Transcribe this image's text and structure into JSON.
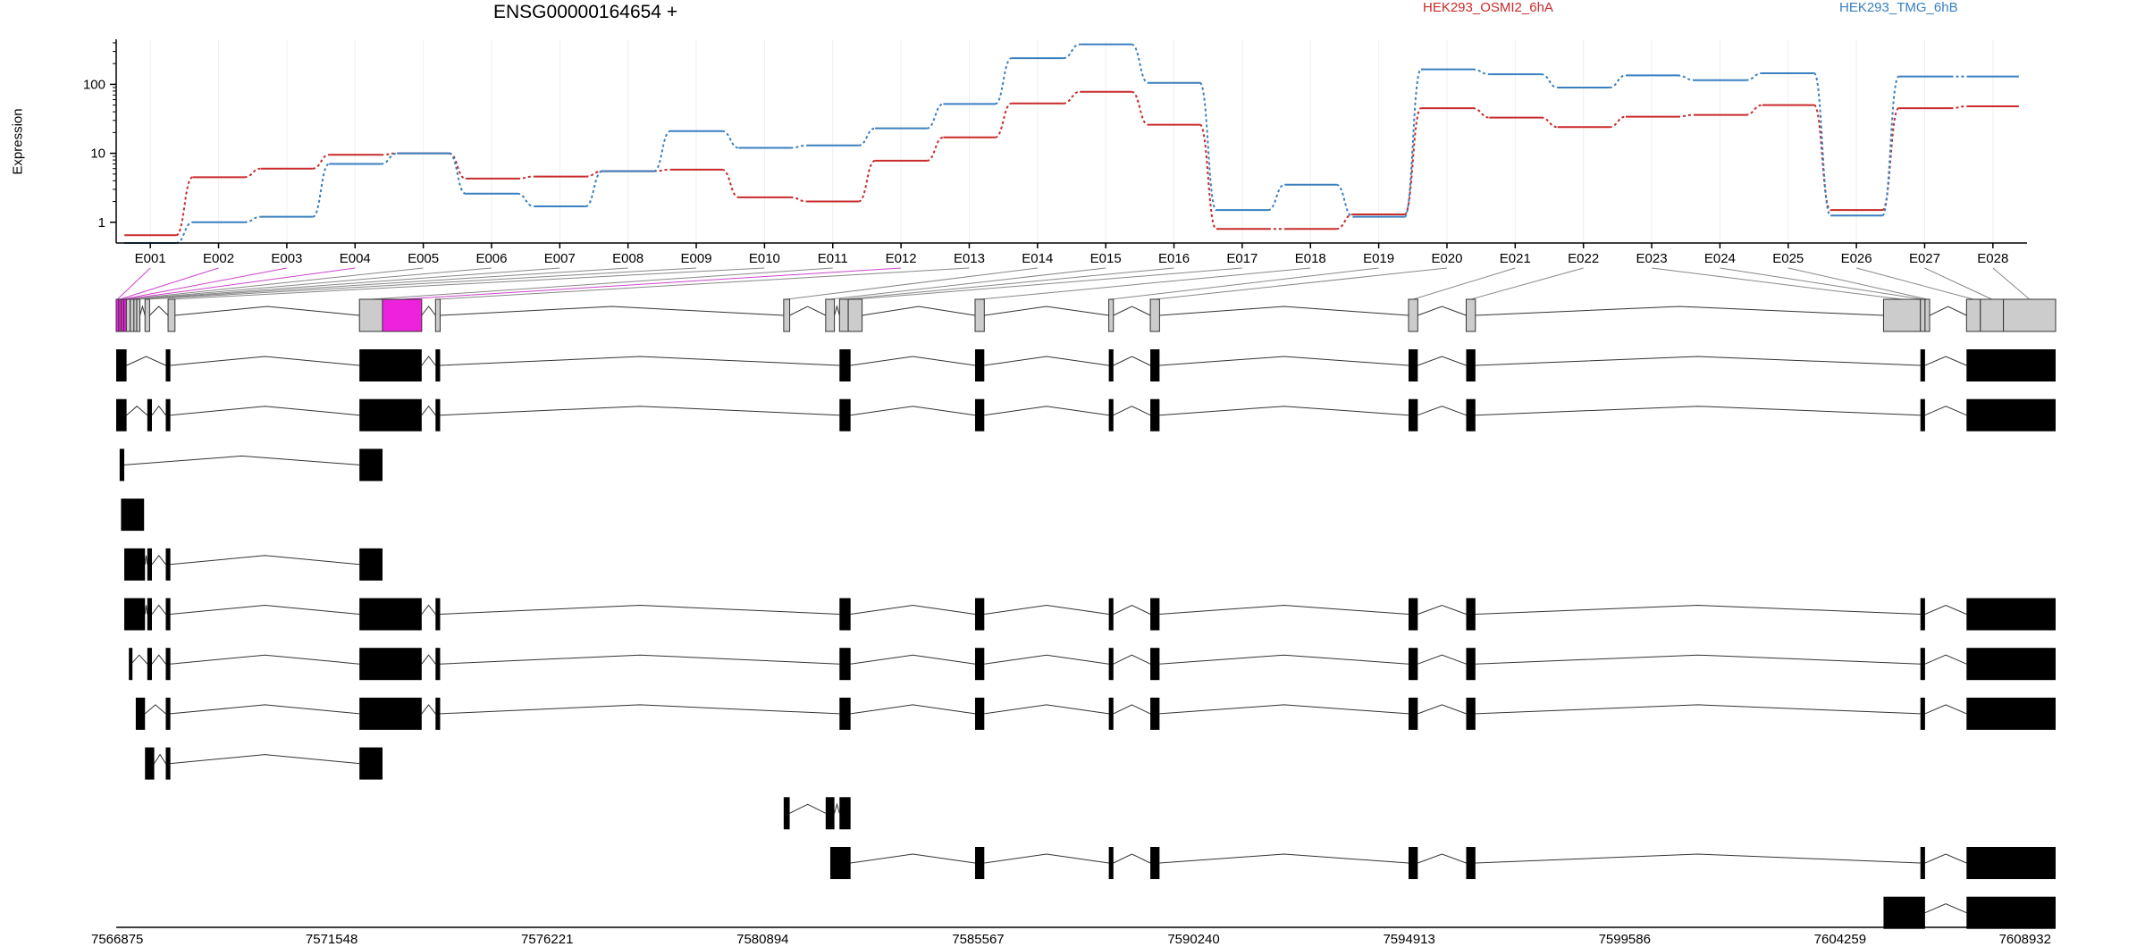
{
  "chart_data": {
    "type": "line",
    "title": "ENSG00000164654 +",
    "ylabel": "Expression",
    "yscale": "log",
    "ylim": [
      0.5,
      450
    ],
    "yticks": [
      1,
      10,
      100
    ],
    "ytick_labels": [
      "1",
      "10",
      "100"
    ],
    "categories": [
      "E001",
      "E002",
      "E003",
      "E004",
      "E005",
      "E006",
      "E007",
      "E008",
      "E009",
      "E010",
      "E011",
      "E012",
      "E013",
      "E014",
      "E015",
      "E016",
      "E017",
      "E018",
      "E019",
      "E020",
      "E021",
      "E022",
      "E023",
      "E024",
      "E025",
      "E026",
      "E027",
      "E028"
    ],
    "series": [
      {
        "name": "HEK293_OSMI2_6hA",
        "color": "#c92a2a",
        "values": [
          0.65,
          4.5,
          6,
          9.5,
          10,
          4.3,
          4.6,
          5.5,
          5.8,
          2.3,
          2,
          7.8,
          17,
          53,
          78,
          26,
          0.8,
          0.8,
          1.3,
          45,
          33,
          24,
          34,
          36,
          50,
          1.5,
          45,
          48
        ]
      },
      {
        "name": "HEK293_TMG_6hB",
        "color": "#3a7fbf",
        "values": [
          0.5,
          1,
          1.2,
          7,
          10,
          2.6,
          1.7,
          5.5,
          21,
          12,
          13,
          23,
          52,
          240,
          380,
          105,
          1.5,
          3.5,
          1.2,
          165,
          140,
          90,
          135,
          115,
          145,
          1.25,
          130,
          130
        ]
      }
    ],
    "genomic_ticks": [
      "7566875",
      "7571548",
      "7576221",
      "7580894",
      "7585567",
      "7590240",
      "7594913",
      "7599586",
      "7604259",
      "7608932"
    ],
    "genomic_range": [
      7566875,
      7608932
    ],
    "exons": [
      {
        "start": 7566875,
        "end": 7566930
      },
      {
        "start": 7566930,
        "end": 7566985
      },
      {
        "start": 7566985,
        "end": 7567040
      },
      {
        "start": 7567040,
        "end": 7567095
      },
      {
        "start": 7567095,
        "end": 7567180
      },
      {
        "start": 7567180,
        "end": 7567260
      },
      {
        "start": 7567260,
        "end": 7567320
      },
      {
        "start": 7567320,
        "end": 7567390
      },
      {
        "start": 7567500,
        "end": 7567600
      },
      {
        "start": 7568000,
        "end": 7568150
      },
      {
        "start": 7572150,
        "end": 7572650
      },
      {
        "start": 7572650,
        "end": 7573500
      },
      {
        "start": 7573800,
        "end": 7573900
      },
      {
        "start": 7581350,
        "end": 7581480
      },
      {
        "start": 7582260,
        "end": 7582450
      },
      {
        "start": 7582560,
        "end": 7582750
      },
      {
        "start": 7582750,
        "end": 7583050
      },
      {
        "start": 7585500,
        "end": 7585700
      },
      {
        "start": 7588400,
        "end": 7588500
      },
      {
        "start": 7589300,
        "end": 7589500
      },
      {
        "start": 7594900,
        "end": 7595100
      },
      {
        "start": 7596150,
        "end": 7596350
      },
      {
        "start": 7605200,
        "end": 7606000
      },
      {
        "start": 7606000,
        "end": 7606100
      },
      {
        "start": 7606100,
        "end": 7606200
      },
      {
        "start": 7607000,
        "end": 7607300
      },
      {
        "start": 7607300,
        "end": 7607800
      },
      {
        "start": 7607800,
        "end": 7608932
      }
    ],
    "highlighted_exons": [
      "E001",
      "E002",
      "E003",
      "E004",
      "E012"
    ],
    "transcripts": [
      [
        [
          7566875,
          7567100
        ],
        [
          7567950,
          7568050
        ],
        [
          7572150,
          7573500
        ],
        [
          7573800,
          7573900
        ],
        [
          7582560,
          7582800
        ],
        [
          7585500,
          7585700
        ],
        [
          7588400,
          7588500
        ],
        [
          7589300,
          7589500
        ],
        [
          7594900,
          7595100
        ],
        [
          7596150,
          7596350
        ],
        [
          7606000,
          7606100
        ],
        [
          7607000,
          7608932
        ]
      ],
      [
        [
          7566875,
          7567100
        ],
        [
          7567550,
          7567650
        ],
        [
          7567950,
          7568050
        ],
        [
          7572150,
          7573500
        ],
        [
          7573800,
          7573900
        ],
        [
          7582560,
          7582800
        ],
        [
          7585500,
          7585700
        ],
        [
          7588400,
          7588500
        ],
        [
          7589300,
          7589500
        ],
        [
          7594900,
          7595100
        ],
        [
          7596150,
          7596350
        ],
        [
          7606000,
          7606100
        ],
        [
          7607000,
          7608932
        ]
      ],
      [
        [
          7566950,
          7567050
        ],
        [
          7572150,
          7572650
        ]
      ],
      [
        [
          7566980,
          7567480
        ]
      ],
      [
        [
          7567050,
          7567500
        ],
        [
          7567550,
          7567650
        ],
        [
          7567950,
          7568050
        ],
        [
          7572150,
          7572650
        ]
      ],
      [
        [
          7567050,
          7567500
        ],
        [
          7567550,
          7567650
        ],
        [
          7567950,
          7568050
        ],
        [
          7572150,
          7573500
        ],
        [
          7573800,
          7573900
        ],
        [
          7582560,
          7582800
        ],
        [
          7585500,
          7585700
        ],
        [
          7588400,
          7588500
        ],
        [
          7589300,
          7589500
        ],
        [
          7594900,
          7595100
        ],
        [
          7596150,
          7596350
        ],
        [
          7606000,
          7606100
        ],
        [
          7607000,
          7608932
        ]
      ],
      [
        [
          7567150,
          7567200
        ],
        [
          7567550,
          7567650
        ],
        [
          7567950,
          7568050
        ],
        [
          7572150,
          7573500
        ],
        [
          7573800,
          7573900
        ],
        [
          7582560,
          7582800
        ],
        [
          7585500,
          7585700
        ],
        [
          7588400,
          7588500
        ],
        [
          7589300,
          7589500
        ],
        [
          7594900,
          7595100
        ],
        [
          7596150,
          7596350
        ],
        [
          7606000,
          7606100
        ],
        [
          7607000,
          7608932
        ]
      ],
      [
        [
          7567300,
          7567500
        ],
        [
          7567950,
          7568050
        ],
        [
          7572150,
          7573500
        ],
        [
          7573800,
          7573900
        ],
        [
          7582560,
          7582800
        ],
        [
          7585500,
          7585700
        ],
        [
          7588400,
          7588500
        ],
        [
          7589300,
          7589500
        ],
        [
          7594900,
          7595100
        ],
        [
          7596150,
          7596350
        ],
        [
          7606000,
          7606100
        ],
        [
          7607000,
          7608932
        ]
      ],
      [
        [
          7567500,
          7567700
        ],
        [
          7567950,
          7568050
        ],
        [
          7572150,
          7572650
        ]
      ],
      [
        [
          7581350,
          7581480
        ],
        [
          7582260,
          7582450
        ],
        [
          7582560,
          7582800
        ]
      ],
      [
        [
          7582360,
          7582800
        ],
        [
          7585500,
          7585700
        ],
        [
          7588400,
          7588500
        ],
        [
          7589300,
          7589500
        ],
        [
          7594900,
          7595100
        ],
        [
          7596150,
          7596350
        ],
        [
          7606000,
          7606100
        ],
        [
          7607000,
          7608932
        ]
      ],
      [
        [
          7605200,
          7606100
        ],
        [
          7607000,
          7608932
        ]
      ]
    ]
  }
}
